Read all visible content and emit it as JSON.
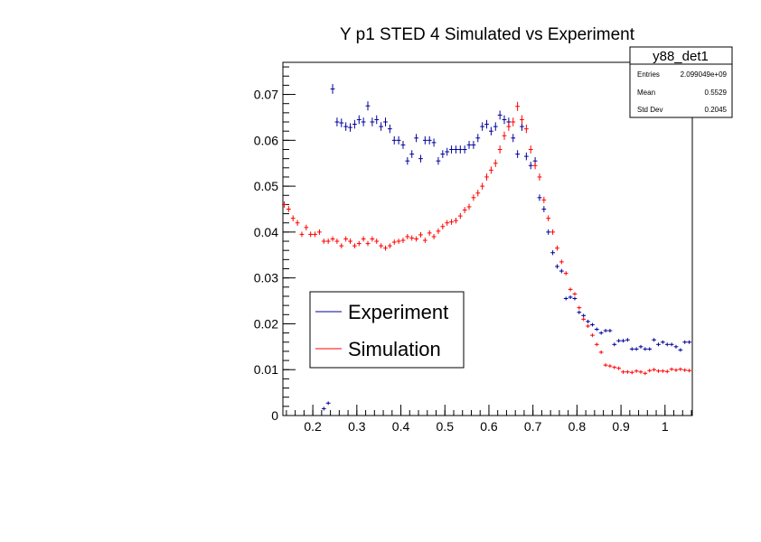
{
  "chart_data": {
    "type": "scatter",
    "title": "Y p1 STED 4 Simulated vs Experiment",
    "xlabel": "",
    "ylabel": "",
    "xlim": [
      0.132,
      1.062
    ],
    "ylim": [
      0,
      0.077
    ],
    "x_ticks": [
      "0.2",
      "0.3",
      "0.4",
      "0.5",
      "0.6",
      "0.7",
      "0.8",
      "0.9",
      "1"
    ],
    "y_ticks": [
      "0",
      "0.01",
      "0.02",
      "0.03",
      "0.04",
      "0.05",
      "0.06",
      "0.07"
    ],
    "legend": {
      "placement": "bottom-left",
      "entries": [
        "Experiment",
        "Simulation"
      ]
    },
    "stats_box": {
      "name": "y88_det1",
      "rows": [
        {
          "label": "Entries",
          "value": "2.099049e+09"
        },
        {
          "label": "Mean",
          "value": "0.5529"
        },
        {
          "label": "Std Dev",
          "value": "0.2045"
        }
      ]
    },
    "series": [
      {
        "name": "Experiment",
        "color": "#000099",
        "x": [
          0.225,
          0.235,
          0.245,
          0.255,
          0.265,
          0.275,
          0.285,
          0.295,
          0.305,
          0.315,
          0.325,
          0.335,
          0.345,
          0.355,
          0.365,
          0.375,
          0.385,
          0.395,
          0.405,
          0.415,
          0.425,
          0.435,
          0.445,
          0.455,
          0.465,
          0.475,
          0.485,
          0.495,
          0.505,
          0.515,
          0.525,
          0.535,
          0.545,
          0.555,
          0.565,
          0.575,
          0.585,
          0.595,
          0.605,
          0.615,
          0.625,
          0.635,
          0.645,
          0.655,
          0.665,
          0.675,
          0.685,
          0.695,
          0.705,
          0.715,
          0.725,
          0.735,
          0.745,
          0.755,
          0.765,
          0.775,
          0.785,
          0.795,
          0.805,
          0.815,
          0.825,
          0.835,
          0.845,
          0.855,
          0.865,
          0.875,
          0.885,
          0.895,
          0.905,
          0.915,
          0.925,
          0.935,
          0.945,
          0.955,
          0.965,
          0.975,
          0.985,
          0.995,
          1.005,
          1.015,
          1.025,
          1.035,
          1.045,
          1.055
        ],
        "y": [
          0.0015,
          0.0027,
          0.0712,
          0.064,
          0.0638,
          0.063,
          0.0628,
          0.0635,
          0.0645,
          0.064,
          0.0675,
          0.064,
          0.0645,
          0.063,
          0.064,
          0.0625,
          0.06,
          0.06,
          0.059,
          0.0555,
          0.057,
          0.0605,
          0.056,
          0.06,
          0.06,
          0.0595,
          0.0555,
          0.057,
          0.0575,
          0.058,
          0.058,
          0.058,
          0.058,
          0.059,
          0.059,
          0.0605,
          0.063,
          0.0635,
          0.062,
          0.063,
          0.0655,
          0.0645,
          0.064,
          0.0605,
          0.057,
          0.063,
          0.0565,
          0.0545,
          0.0555,
          0.0475,
          0.045,
          0.04,
          0.0355,
          0.0325,
          0.0315,
          0.0255,
          0.0258,
          0.0255,
          0.0225,
          0.0218,
          0.0205,
          0.0198,
          0.0188,
          0.018,
          0.0185,
          0.0185,
          0.0155,
          0.0163,
          0.0163,
          0.0165,
          0.0145,
          0.0145,
          0.015,
          0.0145,
          0.0145,
          0.0165,
          0.0155,
          0.016,
          0.0155,
          0.0155,
          0.015,
          0.0143,
          0.016,
          0.016
        ]
      },
      {
        "name": "Simulation",
        "color": "#ff0000",
        "x": [
          0.135,
          0.145,
          0.155,
          0.165,
          0.175,
          0.185,
          0.195,
          0.205,
          0.215,
          0.225,
          0.235,
          0.245,
          0.255,
          0.265,
          0.275,
          0.285,
          0.295,
          0.305,
          0.315,
          0.325,
          0.335,
          0.345,
          0.355,
          0.365,
          0.375,
          0.385,
          0.395,
          0.405,
          0.415,
          0.425,
          0.435,
          0.445,
          0.455,
          0.465,
          0.475,
          0.485,
          0.495,
          0.505,
          0.515,
          0.525,
          0.535,
          0.545,
          0.555,
          0.565,
          0.575,
          0.585,
          0.595,
          0.605,
          0.615,
          0.625,
          0.635,
          0.645,
          0.655,
          0.665,
          0.675,
          0.685,
          0.695,
          0.705,
          0.715,
          0.725,
          0.735,
          0.745,
          0.755,
          0.765,
          0.775,
          0.785,
          0.795,
          0.805,
          0.815,
          0.825,
          0.835,
          0.845,
          0.855,
          0.865,
          0.875,
          0.885,
          0.895,
          0.905,
          0.915,
          0.925,
          0.935,
          0.945,
          0.955,
          0.965,
          0.975,
          0.985,
          0.995,
          1.005,
          1.015,
          1.025,
          1.035,
          1.045,
          1.055
        ],
        "y": [
          0.046,
          0.045,
          0.043,
          0.042,
          0.0395,
          0.041,
          0.0395,
          0.0395,
          0.04,
          0.038,
          0.038,
          0.0385,
          0.038,
          0.037,
          0.0385,
          0.038,
          0.037,
          0.0375,
          0.0385,
          0.0375,
          0.0385,
          0.038,
          0.037,
          0.0365,
          0.037,
          0.0378,
          0.038,
          0.0382,
          0.039,
          0.0387,
          0.0385,
          0.0394,
          0.0382,
          0.0398,
          0.039,
          0.0402,
          0.0412,
          0.042,
          0.0422,
          0.0425,
          0.0435,
          0.0448,
          0.0455,
          0.0475,
          0.0485,
          0.05,
          0.052,
          0.0535,
          0.055,
          0.058,
          0.061,
          0.063,
          0.064,
          0.0674,
          0.0645,
          0.0625,
          0.058,
          0.0545,
          0.052,
          0.047,
          0.043,
          0.04,
          0.0365,
          0.0335,
          0.031,
          0.0275,
          0.0265,
          0.0235,
          0.021,
          0.0195,
          0.0175,
          0.0155,
          0.0138,
          0.011,
          0.0108,
          0.0105,
          0.0103,
          0.0095,
          0.0095,
          0.0094,
          0.0097,
          0.0095,
          0.0092,
          0.0098,
          0.01,
          0.0097,
          0.0097,
          0.0096,
          0.0101,
          0.0099,
          0.0101,
          0.0099,
          0.0098
        ]
      }
    ]
  }
}
